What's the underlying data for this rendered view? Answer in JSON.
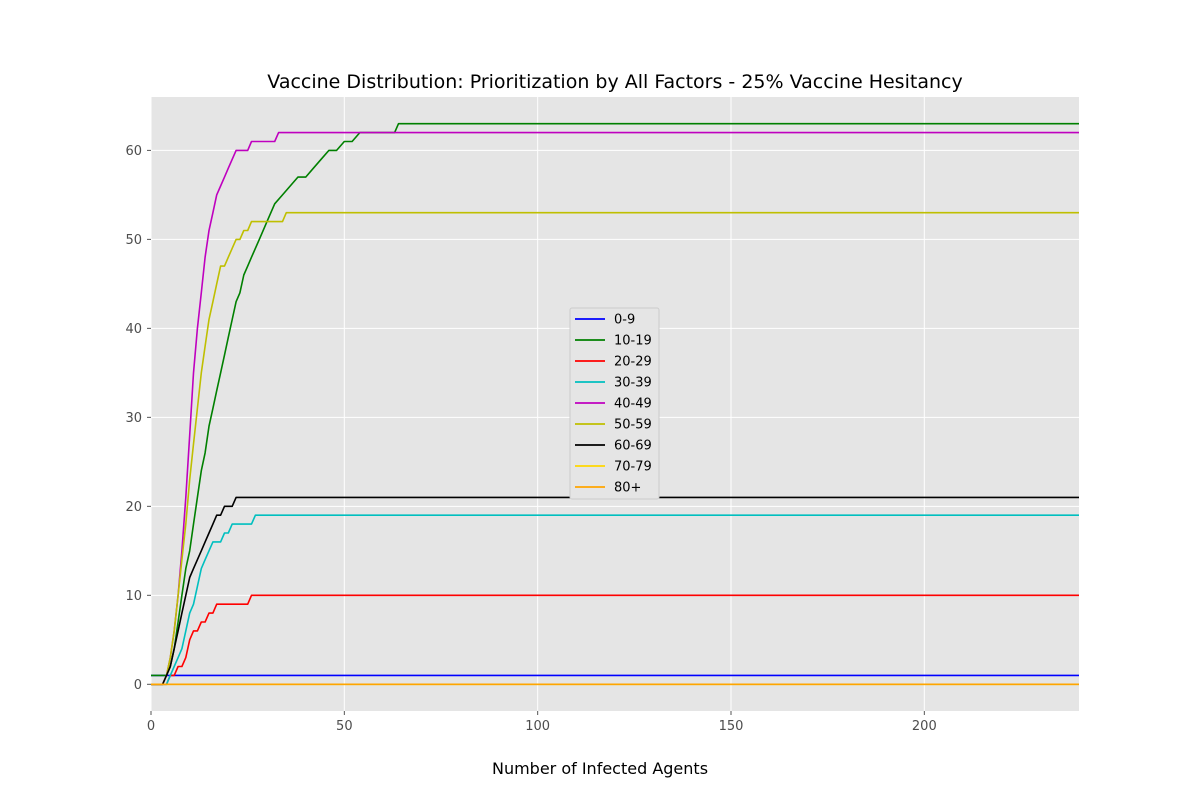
{
  "chart_data": {
    "type": "line",
    "title": "Vaccine Distribution: Prioritization by All Factors - 25% Vaccine Hesitancy",
    "xlabel": "Number of Infected Agents",
    "ylabel": "",
    "xlim": [
      0,
      240
    ],
    "ylim": [
      -3,
      66
    ],
    "xticks": [
      0,
      50,
      100,
      150,
      200
    ],
    "yticks": [
      0,
      10,
      20,
      30,
      40,
      50,
      60
    ],
    "grid": true,
    "legend_position": "center",
    "series": [
      {
        "name": "0-9",
        "color": "#0000ff",
        "x": [
          0,
          240
        ],
        "y": [
          1,
          1
        ]
      },
      {
        "name": "10-19",
        "color": "#008000",
        "x": [
          0,
          3,
          4,
          5,
          6,
          7,
          8,
          9,
          10,
          11,
          12,
          13,
          14,
          15,
          16,
          17,
          18,
          19,
          20,
          21,
          22,
          23,
          24,
          25,
          26,
          28,
          30,
          32,
          34,
          36,
          38,
          40,
          42,
          44,
          46,
          48,
          50,
          52,
          54,
          56,
          60,
          63,
          64,
          240
        ],
        "y": [
          1,
          1,
          1,
          2,
          4,
          7,
          10,
          13,
          15,
          18,
          21,
          24,
          26,
          29,
          31,
          33,
          35,
          37,
          39,
          41,
          43,
          44,
          46,
          47,
          48,
          50,
          52,
          54,
          55,
          56,
          57,
          57,
          58,
          59,
          60,
          60,
          61,
          61,
          62,
          62,
          62,
          62,
          63,
          63
        ]
      },
      {
        "name": "20-29",
        "color": "#ff0000",
        "x": [
          0,
          4,
          5,
          6,
          7,
          8,
          9,
          10,
          11,
          12,
          13,
          14,
          15,
          16,
          17,
          18,
          20,
          22,
          24,
          25,
          26,
          27,
          240
        ],
        "y": [
          0,
          0,
          1,
          1,
          2,
          2,
          3,
          5,
          6,
          6,
          7,
          7,
          8,
          8,
          9,
          9,
          9,
          9,
          9,
          9,
          10,
          10,
          10
        ]
      },
      {
        "name": "30-39",
        "color": "#00bfbf",
        "x": [
          0,
          4,
          5,
          6,
          7,
          8,
          9,
          10,
          11,
          12,
          13,
          14,
          15,
          16,
          17,
          18,
          19,
          20,
          21,
          22,
          24,
          26,
          27,
          240
        ],
        "y": [
          0,
          0,
          1,
          2,
          3,
          4,
          6,
          8,
          9,
          11,
          13,
          14,
          15,
          16,
          16,
          16,
          17,
          17,
          18,
          18,
          18,
          18,
          19,
          19
        ]
      },
      {
        "name": "40-49",
        "color": "#bf00bf",
        "x": [
          0,
          3,
          4,
          5,
          6,
          7,
          8,
          9,
          10,
          11,
          12,
          13,
          14,
          15,
          16,
          17,
          18,
          19,
          20,
          21,
          22,
          23,
          24,
          25,
          26,
          27,
          28,
          30,
          32,
          33,
          34,
          240
        ],
        "y": [
          0,
          0,
          1,
          3,
          6,
          10,
          15,
          21,
          28,
          35,
          40,
          44,
          48,
          51,
          53,
          55,
          56,
          57,
          58,
          59,
          60,
          60,
          60,
          60,
          61,
          61,
          61,
          61,
          61,
          62,
          62,
          62
        ]
      },
      {
        "name": "50-59",
        "color": "#bfbf00",
        "x": [
          0,
          3,
          4,
          5,
          6,
          7,
          8,
          9,
          10,
          11,
          12,
          13,
          14,
          15,
          16,
          17,
          18,
          19,
          20,
          21,
          22,
          23,
          24,
          25,
          26,
          28,
          30,
          32,
          34,
          35,
          240
        ],
        "y": [
          0,
          0,
          1,
          3,
          6,
          10,
          14,
          18,
          23,
          27,
          31,
          35,
          38,
          41,
          43,
          45,
          47,
          47,
          48,
          49,
          50,
          50,
          51,
          51,
          52,
          52,
          52,
          52,
          52,
          53,
          53
        ]
      },
      {
        "name": "60-69",
        "color": "#000000",
        "x": [
          0,
          3,
          4,
          5,
          6,
          7,
          8,
          9,
          10,
          11,
          12,
          13,
          14,
          15,
          16,
          17,
          18,
          19,
          20,
          21,
          22,
          240
        ],
        "y": [
          0,
          0,
          1,
          2,
          4,
          6,
          8,
          10,
          12,
          13,
          14,
          15,
          16,
          17,
          18,
          19,
          19,
          20,
          20,
          20,
          21,
          21
        ]
      },
      {
        "name": "70-79",
        "color": "#ffd700",
        "x": [
          0,
          240
        ],
        "y": [
          0,
          0
        ]
      },
      {
        "name": "80+",
        "color": "#ffa500",
        "x": [
          0,
          240
        ],
        "y": [
          0,
          0
        ]
      }
    ]
  }
}
